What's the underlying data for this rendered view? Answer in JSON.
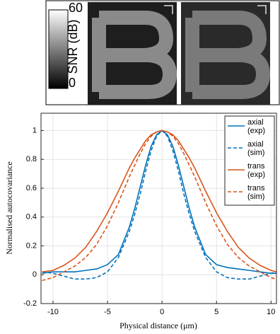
{
  "colorbar": {
    "max": 60,
    "label": "SNR (dB)",
    "min": 0
  },
  "chart_data": {
    "type": "line",
    "xlabel": "Physical distance (μm)",
    "ylabel": "Normalised autocovariance",
    "x": [
      -11,
      -10,
      -9,
      -8,
      -7,
      -6,
      -5,
      -4,
      -3,
      -2.5,
      -2,
      -1.5,
      -1,
      -0.5,
      0,
      0.5,
      1,
      1.5,
      2,
      2.5,
      3,
      4,
      5,
      6,
      7,
      8,
      9,
      10,
      10.5
    ],
    "series": [
      {
        "name": "axial (exp)",
        "color": "#0072bd",
        "linestyle": "solid",
        "values": [
          0.01,
          0.02,
          0.02,
          0.02,
          0.03,
          0.04,
          0.07,
          0.14,
          0.33,
          0.46,
          0.61,
          0.76,
          0.89,
          0.97,
          1,
          0.97,
          0.89,
          0.76,
          0.61,
          0.46,
          0.33,
          0.14,
          0.07,
          0.05,
          0.04,
          0.03,
          0.02,
          0.01,
          0.01
        ]
      },
      {
        "name": "axial (sim)",
        "color": "#0072bd",
        "linestyle": "dashed",
        "values": [
          0.02,
          0.01,
          -0.01,
          -0.03,
          -0.03,
          -0.02,
          0.02,
          0.12,
          0.3,
          0.42,
          0.56,
          0.72,
          0.86,
          0.96,
          1,
          0.96,
          0.86,
          0.72,
          0.56,
          0.42,
          0.3,
          0.12,
          0.02,
          -0.02,
          -0.03,
          -0.03,
          -0.01,
          0.01,
          0.02
        ]
      },
      {
        "name": "trans (exp)",
        "color": "#d95319",
        "linestyle": "solid",
        "values": [
          0.02,
          0.03,
          0.065,
          0.115,
          0.19,
          0.3,
          0.43,
          0.58,
          0.74,
          0.81,
          0.87,
          0.93,
          0.97,
          0.99,
          1,
          0.99,
          0.97,
          0.93,
          0.87,
          0.81,
          0.74,
          0.58,
          0.43,
          0.3,
          0.19,
          0.115,
          0.065,
          0.03,
          0.02
        ]
      },
      {
        "name": "trans (sim)",
        "color": "#d95319",
        "linestyle": "dashed",
        "values": [
          -0.04,
          -0.02,
          0.02,
          0.06,
          0.12,
          0.21,
          0.34,
          0.5,
          0.68,
          0.76,
          0.84,
          0.91,
          0.96,
          0.99,
          1,
          0.99,
          0.96,
          0.91,
          0.84,
          0.76,
          0.68,
          0.5,
          0.34,
          0.21,
          0.12,
          0.06,
          0.02,
          -0.02,
          -0.03
        ]
      }
    ],
    "xlim": [
      -11.1,
      10.5
    ],
    "ylim": [
      -0.2,
      1.12
    ],
    "xticks": [
      -10,
      -5,
      0,
      5,
      10
    ],
    "yticks": [
      -0.2,
      0,
      0.2,
      0.4,
      0.6,
      0.8,
      1
    ],
    "grid": true,
    "legend": "upper right"
  }
}
